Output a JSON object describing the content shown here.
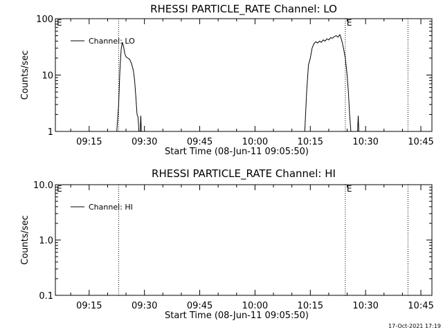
{
  "colors": {
    "background": "#ffffff",
    "ink": "#000000"
  },
  "timestamp": "17-Oct-2021 17:19",
  "chart_data": [
    {
      "type": "line",
      "title": "RHESSI PARTICLE_RATE Channel: LO",
      "xlabel": "Start Time (08-Jun-11 09:05:50)",
      "ylabel": "Counts/sec",
      "xlim": [
        "09:05:50",
        "10:48:00"
      ],
      "ylim": [
        1,
        100
      ],
      "yscale": "log",
      "x_tick_labels": [
        "09:15",
        "09:30",
        "09:45",
        "10:00",
        "10:15",
        "10:30",
        "10:45"
      ],
      "y_tick_labels": [
        "1",
        "10",
        "100"
      ],
      "legend": {
        "position": "top-left",
        "entries": [
          "Channel: LO"
        ]
      },
      "vertical_markers": [
        {
          "time": "09:23:00",
          "label": ""
        },
        {
          "time": "10:24:30",
          "label": "E"
        },
        {
          "time": "10:41:30",
          "label": ""
        }
      ],
      "corner_label": "E",
      "series": [
        {
          "name": "Channel: LO",
          "segments": [
            [
              [
                "09:22:30",
                1.0
              ],
              [
                "09:23:00",
                3.0
              ],
              [
                "09:23:20",
                12.0
              ],
              [
                "09:23:40",
                28.0
              ],
              [
                "09:24:00",
                38.0
              ],
              [
                "09:24:20",
                32.0
              ],
              [
                "09:24:40",
                24.0
              ],
              [
                "09:25:00",
                21.0
              ],
              [
                "09:25:30",
                20.0
              ],
              [
                "09:26:00",
                19.0
              ],
              [
                "09:26:30",
                16.0
              ],
              [
                "09:27:00",
                12.0
              ],
              [
                "09:27:20",
                8.0
              ],
              [
                "09:27:40",
                4.0
              ],
              [
                "09:28:00",
                2.0
              ],
              [
                "09:28:15",
                1.8
              ],
              [
                "09:28:30",
                1.0
              ]
            ],
            [
              [
                "09:28:50",
                1.0
              ],
              [
                "09:29:00",
                1.9
              ],
              [
                "09:29:10",
                1.0
              ]
            ],
            [
              [
                "10:13:30",
                1.0
              ],
              [
                "10:14:00",
                5.0
              ],
              [
                "10:14:30",
                15.0
              ],
              [
                "10:15:00",
                20.0
              ],
              [
                "10:15:30",
                30.0
              ],
              [
                "10:16:00",
                36.0
              ],
              [
                "10:16:30",
                39.0
              ],
              [
                "10:17:00",
                37.0
              ],
              [
                "10:17:30",
                40.0
              ],
              [
                "10:18:00",
                38.0
              ],
              [
                "10:18:30",
                42.0
              ],
              [
                "10:19:00",
                40.0
              ],
              [
                "10:19:30",
                44.0
              ],
              [
                "10:20:00",
                42.0
              ],
              [
                "10:20:30",
                46.0
              ],
              [
                "10:21:00",
                45.0
              ],
              [
                "10:21:30",
                48.0
              ],
              [
                "10:22:00",
                50.0
              ],
              [
                "10:22:30",
                47.0
              ],
              [
                "10:23:00",
                52.0
              ],
              [
                "10:23:20",
                45.0
              ],
              [
                "10:23:40",
                38.0
              ],
              [
                "10:24:00",
                30.0
              ],
              [
                "10:24:30",
                20.0
              ],
              [
                "10:25:00",
                10.0
              ],
              [
                "10:25:20",
                5.0
              ],
              [
                "10:25:40",
                2.0
              ],
              [
                "10:26:00",
                1.0
              ]
            ],
            [
              [
                "10:27:50",
                1.0
              ],
              [
                "10:28:00",
                1.9
              ],
              [
                "10:28:10",
                1.0
              ]
            ]
          ]
        }
      ]
    },
    {
      "type": "line",
      "title": "RHESSI PARTICLE_RATE Channel: HI",
      "xlabel": "Start Time (08-Jun-11 09:05:50)",
      "ylabel": "Counts/sec",
      "xlim": [
        "09:05:50",
        "10:48:00"
      ],
      "ylim": [
        0.1,
        10
      ],
      "yscale": "log",
      "x_tick_labels": [
        "09:15",
        "09:30",
        "09:45",
        "10:00",
        "10:15",
        "10:30",
        "10:45"
      ],
      "y_tick_labels": [
        "0.1",
        "1.0",
        "10.0"
      ],
      "legend": {
        "position": "top-left",
        "entries": [
          "Channel: HI"
        ]
      },
      "vertical_markers": [
        {
          "time": "09:23:00",
          "label": ""
        },
        {
          "time": "10:24:30",
          "label": "E"
        },
        {
          "time": "10:41:30",
          "label": ""
        }
      ],
      "corner_label": "E",
      "series": [
        {
          "name": "Channel: HI",
          "segments": []
        }
      ]
    }
  ]
}
